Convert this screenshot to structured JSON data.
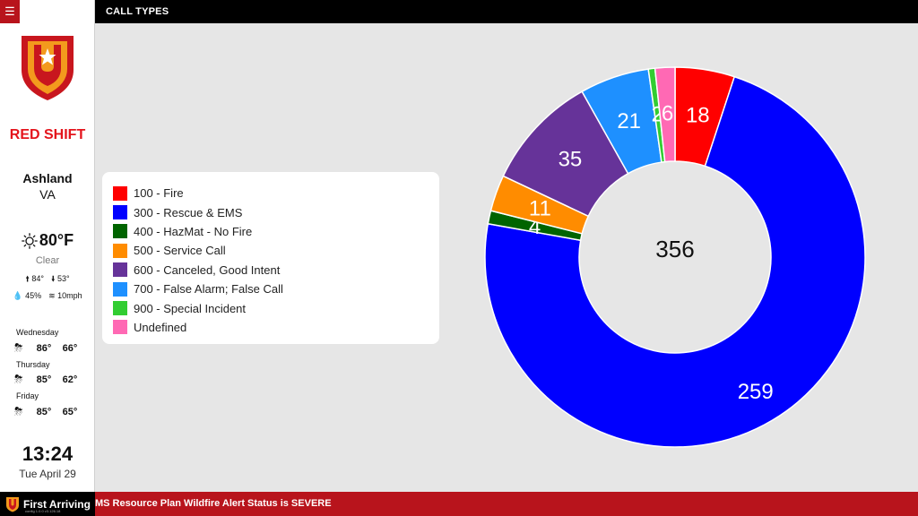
{
  "header": {
    "title": "CALL TYPES"
  },
  "sidebar": {
    "shift_name": "RED SHIFT",
    "city": "Ashland",
    "state": "VA",
    "weather": {
      "temp": "80°F",
      "condition": "Clear",
      "high": "84°",
      "low": "53°",
      "humidity": "45%",
      "wind": "10mph"
    },
    "forecast": [
      {
        "day": "Wednesday",
        "high": "86°",
        "low": "66°",
        "icon": "rain-icon"
      },
      {
        "day": "Thursday",
        "high": "85°",
        "low": "62°",
        "icon": "rain-icon"
      },
      {
        "day": "Friday",
        "high": "85°",
        "low": "65°",
        "icon": "rain-icon"
      }
    ],
    "time": "13:24",
    "date": "Tue April 29"
  },
  "footer": {
    "brand": "First Arriving",
    "brand_sub": "config 1.0.0    v3.126.18",
    "ticker": "MS Resource Plan Wildfire Alert Status is SEVERE"
  },
  "colors": {
    "brand_red": "#b8141c",
    "shift_red": "#e4141c"
  },
  "chart_data": {
    "type": "pie",
    "variant": "donut",
    "total_label": "356",
    "categories": [
      "100 - Fire",
      "300 - Rescue & EMS",
      "400 - HazMat - No Fire",
      "500 - Service Call",
      "600 - Canceled, Good Intent",
      "700 - False Alarm; False Call",
      "900 - Special Incident",
      "Undefined"
    ],
    "values": [
      18,
      259,
      4,
      11,
      35,
      21,
      2,
      6
    ],
    "colors": [
      "#ff0000",
      "#0000ff",
      "#006400",
      "#ff8c00",
      "#663399",
      "#1e90ff",
      "#32cd32",
      "#ff69b4"
    ],
    "legend_position": "left"
  }
}
